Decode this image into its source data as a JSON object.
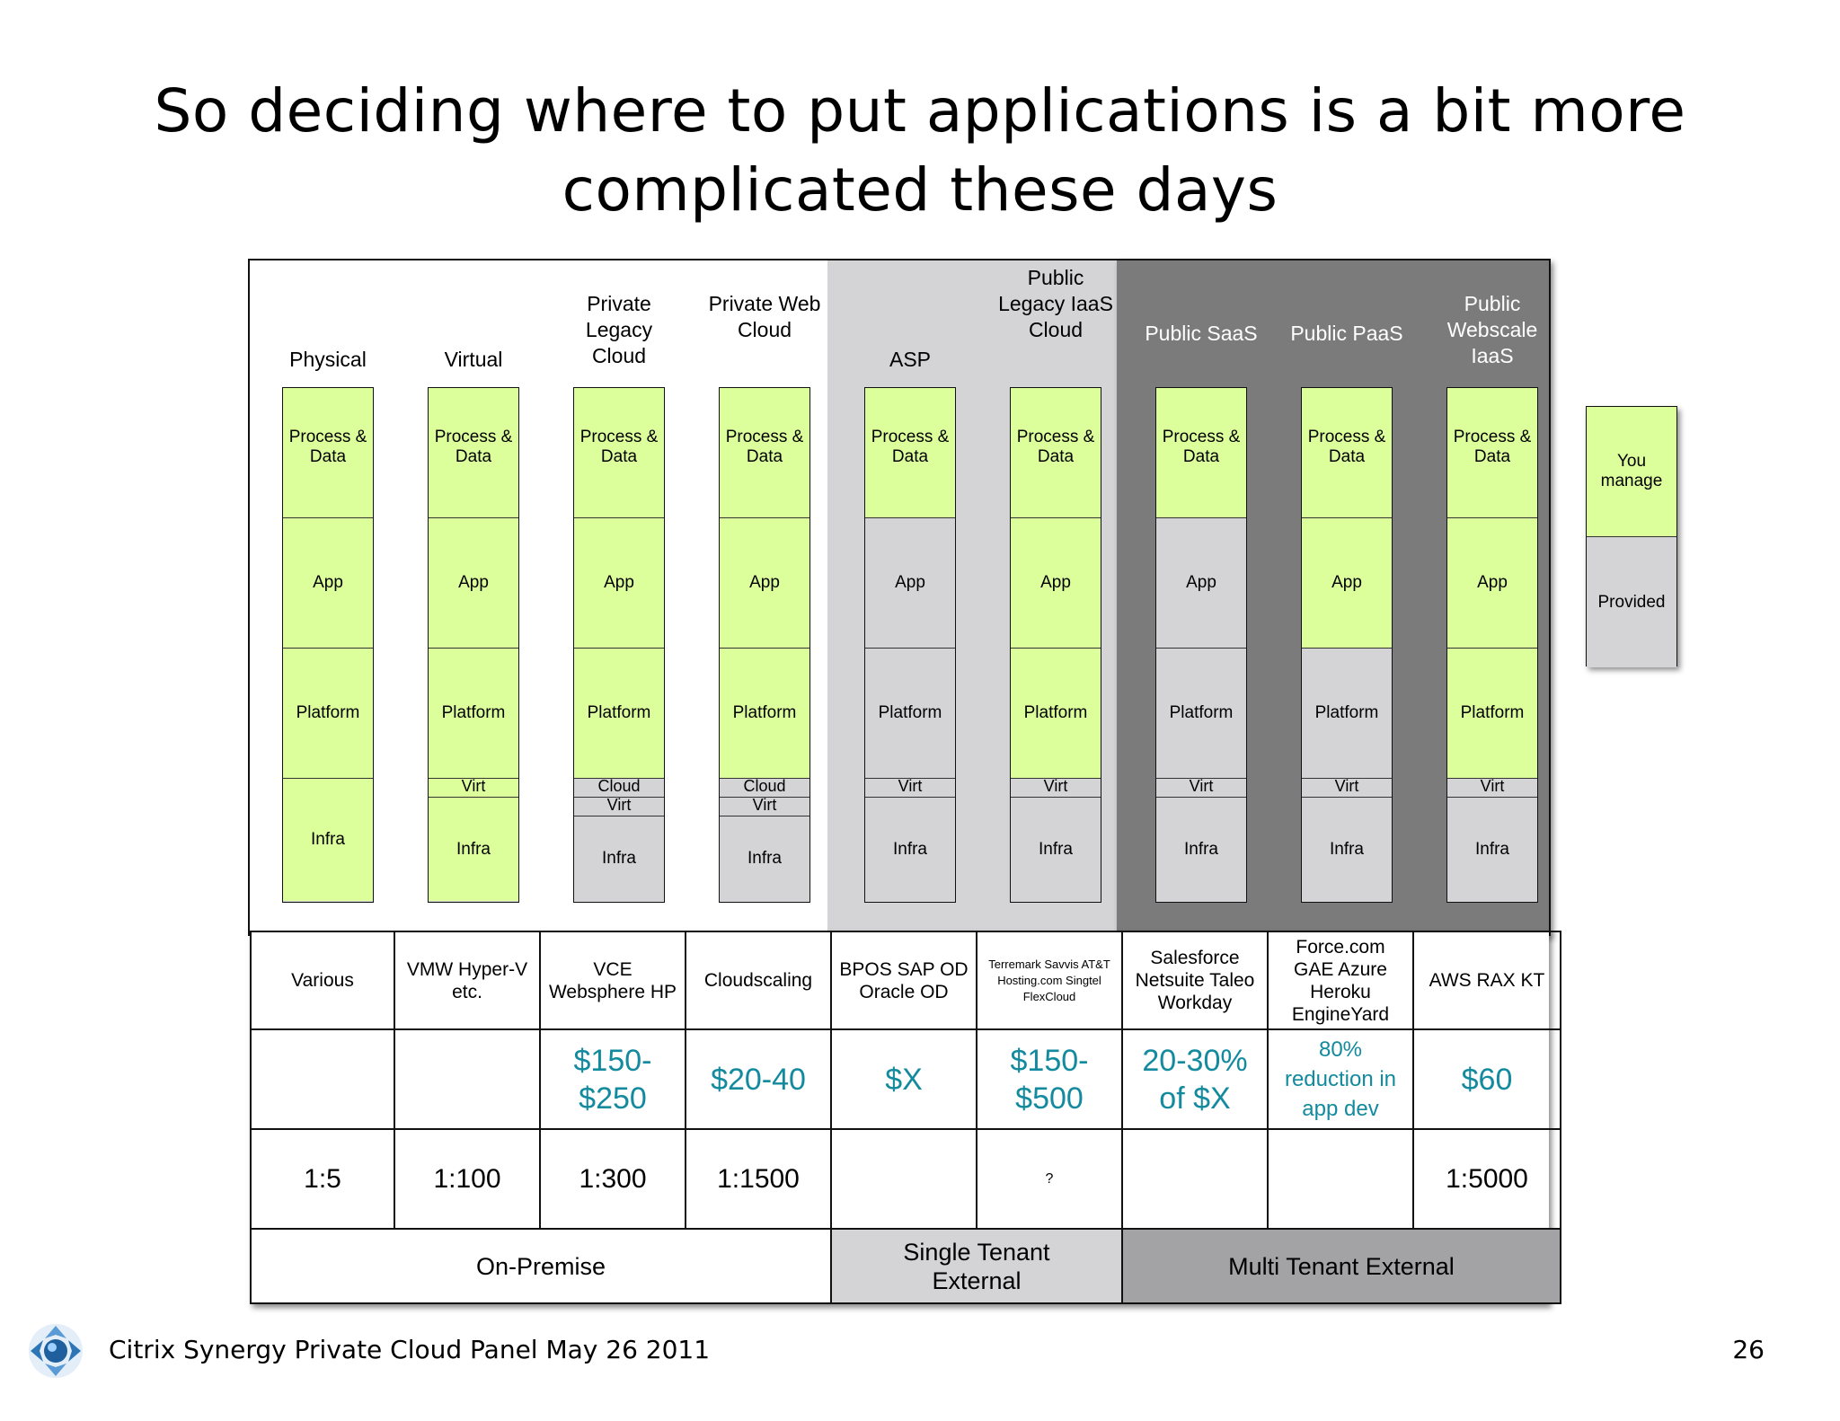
{
  "title": {
    "line1": "So deciding where to put applications is a bit more",
    "line2": "complicated these days"
  },
  "columns": [
    {
      "label": "Physical",
      "layers": [
        {
          "text": "Process & Data",
          "state": "manage"
        },
        {
          "text": "App",
          "state": "manage"
        },
        {
          "text": "Platform",
          "state": "manage"
        },
        {
          "text": "Infra",
          "state": "manage"
        }
      ]
    },
    {
      "label": "Virtual",
      "layers": [
        {
          "text": "Process & Data",
          "state": "manage"
        },
        {
          "text": "App",
          "state": "manage"
        },
        {
          "text": "Platform",
          "state": "manage"
        },
        {
          "text": "Virt",
          "state": "manage"
        },
        {
          "text": "Infra",
          "state": "manage"
        }
      ]
    },
    {
      "label": "Private Legacy Cloud",
      "layers": [
        {
          "text": "Process & Data",
          "state": "manage"
        },
        {
          "text": "App",
          "state": "manage"
        },
        {
          "text": "Platform",
          "state": "manage"
        },
        {
          "text": "Cloud",
          "state": "provided"
        },
        {
          "text": "Virt",
          "state": "provided"
        },
        {
          "text": "Infra",
          "state": "provided"
        }
      ]
    },
    {
      "label": "Private Web Cloud",
      "layers": [
        {
          "text": "Process & Data",
          "state": "manage"
        },
        {
          "text": "App",
          "state": "manage"
        },
        {
          "text": "Platform",
          "state": "manage"
        },
        {
          "text": "Cloud",
          "state": "provided"
        },
        {
          "text": "Virt",
          "state": "provided"
        },
        {
          "text": "Infra",
          "state": "provided"
        }
      ]
    },
    {
      "label": "ASP",
      "layers": [
        {
          "text": "Process & Data",
          "state": "manage"
        },
        {
          "text": "App",
          "state": "provided"
        },
        {
          "text": "Platform",
          "state": "provided"
        },
        {
          "text": "Virt",
          "state": "provided"
        },
        {
          "text": "Infra",
          "state": "provided"
        }
      ]
    },
    {
      "label": "Public Legacy IaaS Cloud",
      "layers": [
        {
          "text": "Process & Data",
          "state": "manage"
        },
        {
          "text": "App",
          "state": "manage"
        },
        {
          "text": "Platform",
          "state": "manage"
        },
        {
          "text": "Virt",
          "state": "provided"
        },
        {
          "text": "Infra",
          "state": "provided"
        }
      ]
    },
    {
      "label": "Public SaaS",
      "layers": [
        {
          "text": "Process & Data",
          "state": "manage"
        },
        {
          "text": "App",
          "state": "provided"
        },
        {
          "text": "Platform",
          "state": "provided"
        },
        {
          "text": "Virt",
          "state": "provided"
        },
        {
          "text": "Infra",
          "state": "provided"
        }
      ]
    },
    {
      "label": "Public PaaS",
      "layers": [
        {
          "text": "Process & Data",
          "state": "manage"
        },
        {
          "text": "App",
          "state": "manage"
        },
        {
          "text": "Platform",
          "state": "provided"
        },
        {
          "text": "Virt",
          "state": "provided"
        },
        {
          "text": "Infra",
          "state": "provided"
        }
      ]
    },
    {
      "label": "Public Webscale IaaS",
      "layers": [
        {
          "text": "Process & Data",
          "state": "manage"
        },
        {
          "text": "App",
          "state": "manage"
        },
        {
          "text": "Platform",
          "state": "manage"
        },
        {
          "text": "Virt",
          "state": "provided"
        },
        {
          "text": "Infra",
          "state": "provided"
        }
      ]
    }
  ],
  "legend": {
    "manage": "You manage",
    "provided": "Provided"
  },
  "vendors": [
    "Various",
    "VMW Hyper-V etc.",
    "VCE Websphere HP",
    "Cloudscaling",
    "BPOS SAP OD Oracle OD",
    "Terremark Savvis AT&T Hosting.com Singtel FlexCloud",
    "Salesforce Netsuite Taleo Workday",
    "Force.com GAE Azure Heroku EngineYard",
    "AWS RAX KT"
  ],
  "prices": [
    "",
    "",
    "$150- $250",
    "$20-40",
    "$X",
    "$150- $500",
    "20-30% of $X",
    "80% reduction in app dev",
    "$60"
  ],
  "ratios": [
    "1:5",
    "1:100",
    "1:300",
    "1:1500",
    "",
    "?",
    "",
    "",
    "1:5000"
  ],
  "groups": [
    {
      "label": "On-Premise",
      "span": 4,
      "color": "#ffffff"
    },
    {
      "label": "Single Tenant External",
      "span": 2,
      "color": "#d4d4d6"
    },
    {
      "label": "Multi Tenant External",
      "span": 3,
      "color": "#a3a3a5"
    }
  ],
  "colors": {
    "manage": "#dcff9c",
    "provided": "#d4d4d6",
    "price": "#138a9e",
    "dark_region": "#7b7b7b"
  },
  "footer": {
    "text": "Citrix Synergy Private Cloud Panel May 26 2011",
    "page": "26",
    "logo": "citrix-logo-icon"
  }
}
